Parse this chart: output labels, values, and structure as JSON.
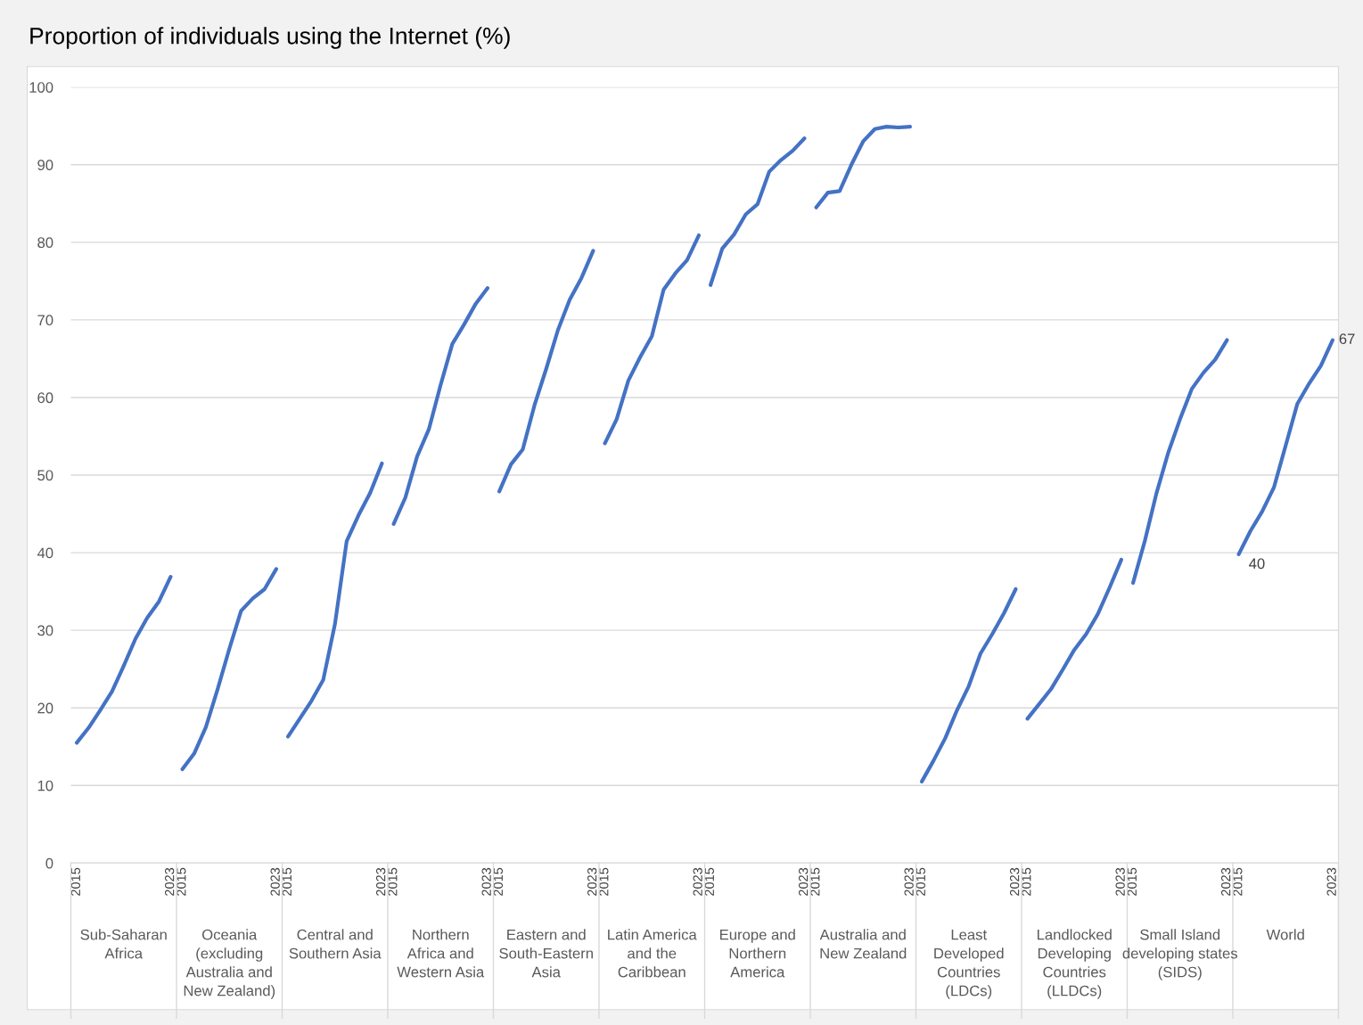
{
  "chart_data": {
    "type": "line",
    "title": "Proportion of individuals using the Internet (%)",
    "categories": [
      "2015",
      null,
      null,
      null,
      null,
      null,
      null,
      null,
      "2023",
      "2015",
      null,
      null,
      null,
      null,
      null,
      null,
      null,
      "2023",
      "2015",
      null,
      null,
      null,
      null,
      null,
      null,
      null,
      "2023",
      "2015",
      null,
      null,
      null,
      null,
      null,
      null,
      null,
      "2023",
      "2015",
      null,
      null,
      null,
      null,
      null,
      null,
      null,
      "2023",
      "2015",
      null,
      null,
      null,
      null,
      null,
      null,
      null,
      "2023",
      "2015",
      null,
      null,
      null,
      null,
      null,
      null,
      null,
      "2023",
      "2015",
      null,
      null,
      null,
      null,
      null,
      null,
      null,
      "2023",
      "2015",
      null,
      null,
      null,
      null,
      null,
      null,
      null,
      "2023",
      "2015",
      null,
      null,
      null,
      null,
      null,
      null,
      null,
      "2023",
      "2015",
      null,
      null,
      null,
      null,
      null,
      null,
      null,
      "2023",
      "2015",
      null,
      null,
      null,
      null,
      null,
      null,
      null,
      "2023"
    ],
    "ylim": [
      0,
      100
    ],
    "yticks": [
      0,
      10,
      20,
      30,
      40,
      50,
      60,
      70,
      80,
      90,
      100
    ],
    "grid": "y",
    "marker": "none",
    "line_style": "solid",
    "annotations": [
      "Sub-Saharan\nAfrica",
      "Oceania\n(excluding\nAustralia and\nNew Zealand)",
      "Central and\nSouthern Asia",
      "Northern\nAfrica and\nWestern Asia",
      "Eastern and\nSouth-Eastern\nAsia",
      "Latin America\nand the\nCaribbean",
      "Europe and\nNorthern\nAmerica",
      "Australia and\nNew Zealand",
      "Least\nDeveloped\nCountries\n(LDCs)",
      "Landlocked\nDeveloping\nCountries\n(LLDCs)",
      "Small Island\ndeveloping states\n(SIDS)",
      "World"
    ],
    "series": [
      {
        "color": "#4472c4",
        "values": [
          15.5,
          17.4,
          19.7,
          22.1,
          25.4,
          28.9,
          31.6,
          33.7,
          36.9,
          null,
          null,
          null,
          null,
          null,
          null,
          null,
          null,
          null,
          null,
          null,
          null,
          null,
          null,
          null,
          null,
          null,
          null,
          null,
          null,
          null,
          null,
          null,
          null,
          null,
          null,
          null,
          null,
          null,
          null,
          null,
          null,
          null,
          null,
          null,
          null,
          null,
          null,
          null,
          null,
          null,
          null,
          null,
          null,
          null,
          null,
          null,
          null,
          null,
          null,
          null,
          null,
          null,
          null,
          null,
          null,
          null,
          null,
          null,
          null,
          null,
          null,
          null,
          null,
          null,
          null,
          null,
          null,
          null,
          null,
          null,
          null,
          null,
          null,
          null,
          null,
          null,
          null,
          null,
          null,
          null,
          null,
          null,
          null,
          null,
          null,
          null,
          null,
          null,
          null,
          null,
          null,
          null,
          null,
          null,
          null,
          null,
          null,
          null
        ]
      },
      {
        "color": "#4472c4",
        "values": [
          null,
          null,
          null,
          null,
          null,
          null,
          null,
          null,
          null,
          12.1,
          14.1,
          17.5,
          22.4,
          27.6,
          32.5,
          34.1,
          35.3,
          37.9,
          null,
          null,
          null,
          null,
          null,
          null,
          null,
          null,
          null,
          null,
          null,
          null,
          null,
          null,
          null,
          null,
          null,
          null,
          null,
          null,
          null,
          null,
          null,
          null,
          null,
          null,
          null,
          null,
          null,
          null,
          null,
          null,
          null,
          null,
          null,
          null,
          null,
          null,
          null,
          null,
          null,
          null,
          null,
          null,
          null,
          null,
          null,
          null,
          null,
          null,
          null,
          null,
          null,
          null,
          null,
          null,
          null,
          null,
          null,
          null,
          null,
          null,
          null,
          null,
          null,
          null,
          null,
          null,
          null,
          null,
          null,
          null,
          null,
          null,
          null,
          null,
          null,
          null,
          null,
          null,
          null,
          null,
          null,
          null,
          null,
          null,
          null,
          null,
          null,
          null
        ]
      },
      {
        "color": "#4472c4",
        "values": [
          null,
          null,
          null,
          null,
          null,
          null,
          null,
          null,
          null,
          null,
          null,
          null,
          null,
          null,
          null,
          null,
          null,
          null,
          16.3,
          18.6,
          20.9,
          23.6,
          30.8,
          41.5,
          44.8,
          47.7,
          51.5,
          null,
          null,
          null,
          null,
          null,
          null,
          null,
          null,
          null,
          null,
          null,
          null,
          null,
          null,
          null,
          null,
          null,
          null,
          null,
          null,
          null,
          null,
          null,
          null,
          null,
          null,
          null,
          null,
          null,
          null,
          null,
          null,
          null,
          null,
          null,
          null,
          null,
          null,
          null,
          null,
          null,
          null,
          null,
          null,
          null,
          null,
          null,
          null,
          null,
          null,
          null,
          null,
          null,
          null,
          null,
          null,
          null,
          null,
          null,
          null,
          null,
          null,
          null,
          null,
          null,
          null,
          null,
          null,
          null,
          null,
          null,
          null,
          null,
          null,
          null,
          null,
          null,
          null,
          null,
          null,
          null
        ]
      },
      {
        "color": "#4472c4",
        "values": [
          null,
          null,
          null,
          null,
          null,
          null,
          null,
          null,
          null,
          null,
          null,
          null,
          null,
          null,
          null,
          null,
          null,
          null,
          null,
          null,
          null,
          null,
          null,
          null,
          null,
          null,
          null,
          43.7,
          47.1,
          52.4,
          55.9,
          61.6,
          66.9,
          69.4,
          72.1,
          74.1,
          null,
          null,
          null,
          null,
          null,
          null,
          null,
          null,
          null,
          null,
          null,
          null,
          null,
          null,
          null,
          null,
          null,
          null,
          null,
          null,
          null,
          null,
          null,
          null,
          null,
          null,
          null,
          null,
          null,
          null,
          null,
          null,
          null,
          null,
          null,
          null,
          null,
          null,
          null,
          null,
          null,
          null,
          null,
          null,
          null,
          null,
          null,
          null,
          null,
          null,
          null,
          null,
          null,
          null,
          null,
          null,
          null,
          null,
          null,
          null,
          null,
          null,
          null,
          null,
          null,
          null,
          null,
          null,
          null,
          null,
          null,
          null
        ]
      },
      {
        "color": "#4472c4",
        "values": [
          null,
          null,
          null,
          null,
          null,
          null,
          null,
          null,
          null,
          null,
          null,
          null,
          null,
          null,
          null,
          null,
          null,
          null,
          null,
          null,
          null,
          null,
          null,
          null,
          null,
          null,
          null,
          null,
          null,
          null,
          null,
          null,
          null,
          null,
          null,
          null,
          47.9,
          51.4,
          53.3,
          59.0,
          63.7,
          68.7,
          72.6,
          75.4,
          78.9,
          null,
          null,
          null,
          null,
          null,
          null,
          null,
          null,
          null,
          null,
          null,
          null,
          null,
          null,
          null,
          null,
          null,
          null,
          null,
          null,
          null,
          null,
          null,
          null,
          null,
          null,
          null,
          null,
          null,
          null,
          null,
          null,
          null,
          null,
          null,
          null,
          null,
          null,
          null,
          null,
          null,
          null,
          null,
          null,
          null,
          null,
          null,
          null,
          null,
          null,
          null,
          null,
          null,
          null,
          null,
          null,
          null,
          null,
          null,
          null,
          null,
          null,
          null
        ]
      },
      {
        "color": "#4472c4",
        "values": [
          null,
          null,
          null,
          null,
          null,
          null,
          null,
          null,
          null,
          null,
          null,
          null,
          null,
          null,
          null,
          null,
          null,
          null,
          null,
          null,
          null,
          null,
          null,
          null,
          null,
          null,
          null,
          null,
          null,
          null,
          null,
          null,
          null,
          null,
          null,
          null,
          null,
          null,
          null,
          null,
          null,
          null,
          null,
          null,
          null,
          54.1,
          57.2,
          62.2,
          65.2,
          67.9,
          73.9,
          76.0,
          77.7,
          80.9,
          null,
          null,
          null,
          null,
          null,
          null,
          null,
          null,
          null,
          null,
          null,
          null,
          null,
          null,
          null,
          null,
          null,
          null,
          null,
          null,
          null,
          null,
          null,
          null,
          null,
          null,
          null,
          null,
          null,
          null,
          null,
          null,
          null,
          null,
          null,
          null,
          null,
          null,
          null,
          null,
          null,
          null,
          null,
          null,
          null,
          null,
          null,
          null,
          null,
          null,
          null,
          null,
          null,
          null
        ]
      },
      {
        "color": "#4472c4",
        "values": [
          null,
          null,
          null,
          null,
          null,
          null,
          null,
          null,
          null,
          null,
          null,
          null,
          null,
          null,
          null,
          null,
          null,
          null,
          null,
          null,
          null,
          null,
          null,
          null,
          null,
          null,
          null,
          null,
          null,
          null,
          null,
          null,
          null,
          null,
          null,
          null,
          null,
          null,
          null,
          null,
          null,
          null,
          null,
          null,
          null,
          null,
          null,
          null,
          null,
          null,
          null,
          null,
          null,
          null,
          74.5,
          79.2,
          81.0,
          83.6,
          84.9,
          89.1,
          90.6,
          91.8,
          93.4,
          null,
          null,
          null,
          null,
          null,
          null,
          null,
          null,
          null,
          null,
          null,
          null,
          null,
          null,
          null,
          null,
          null,
          null,
          null,
          null,
          null,
          null,
          null,
          null,
          null,
          null,
          null,
          null,
          null,
          null,
          null,
          null,
          null,
          null,
          null,
          null,
          null,
          null,
          null,
          null,
          null,
          null,
          null,
          null,
          null
        ]
      },
      {
        "color": "#4472c4",
        "values": [
          null,
          null,
          null,
          null,
          null,
          null,
          null,
          null,
          null,
          null,
          null,
          null,
          null,
          null,
          null,
          null,
          null,
          null,
          null,
          null,
          null,
          null,
          null,
          null,
          null,
          null,
          null,
          null,
          null,
          null,
          null,
          null,
          null,
          null,
          null,
          null,
          null,
          null,
          null,
          null,
          null,
          null,
          null,
          null,
          null,
          null,
          null,
          null,
          null,
          null,
          null,
          null,
          null,
          null,
          null,
          null,
          null,
          null,
          null,
          null,
          null,
          null,
          null,
          84.5,
          86.4,
          86.6,
          90.0,
          93.0,
          94.6,
          94.9,
          94.8,
          94.9,
          null,
          null,
          null,
          null,
          null,
          null,
          null,
          null,
          null,
          null,
          null,
          null,
          null,
          null,
          null,
          null,
          null,
          null,
          null,
          null,
          null,
          null,
          null,
          null,
          null,
          null,
          null,
          null,
          null,
          null,
          null,
          null,
          null,
          null,
          null,
          null
        ]
      },
      {
        "color": "#4472c4",
        "values": [
          null,
          null,
          null,
          null,
          null,
          null,
          null,
          null,
          null,
          null,
          null,
          null,
          null,
          null,
          null,
          null,
          null,
          null,
          null,
          null,
          null,
          null,
          null,
          null,
          null,
          null,
          null,
          null,
          null,
          null,
          null,
          null,
          null,
          null,
          null,
          null,
          null,
          null,
          null,
          null,
          null,
          null,
          null,
          null,
          null,
          null,
          null,
          null,
          null,
          null,
          null,
          null,
          null,
          null,
          null,
          null,
          null,
          null,
          null,
          null,
          null,
          null,
          null,
          null,
          null,
          null,
          null,
          null,
          null,
          null,
          null,
          null,
          10.5,
          13.2,
          16.1,
          19.7,
          22.8,
          27.0,
          29.5,
          32.2,
          35.3,
          null,
          null,
          null,
          null,
          null,
          null,
          null,
          null,
          null,
          null,
          null,
          null,
          null,
          null,
          null,
          null,
          null,
          null,
          null,
          null,
          null,
          null,
          null,
          null,
          null,
          null,
          null
        ]
      },
      {
        "color": "#4472c4",
        "values": [
          null,
          null,
          null,
          null,
          null,
          null,
          null,
          null,
          null,
          null,
          null,
          null,
          null,
          null,
          null,
          null,
          null,
          null,
          null,
          null,
          null,
          null,
          null,
          null,
          null,
          null,
          null,
          null,
          null,
          null,
          null,
          null,
          null,
          null,
          null,
          null,
          null,
          null,
          null,
          null,
          null,
          null,
          null,
          null,
          null,
          null,
          null,
          null,
          null,
          null,
          null,
          null,
          null,
          null,
          null,
          null,
          null,
          null,
          null,
          null,
          null,
          null,
          null,
          null,
          null,
          null,
          null,
          null,
          null,
          null,
          null,
          null,
          null,
          null,
          null,
          null,
          null,
          null,
          null,
          null,
          null,
          18.6,
          20.5,
          22.4,
          24.9,
          27.5,
          29.5,
          32.1,
          35.5,
          39.1,
          null,
          null,
          null,
          null,
          null,
          null,
          null,
          null,
          null,
          null,
          null,
          null,
          null,
          null,
          null,
          null,
          null,
          null
        ]
      },
      {
        "color": "#4472c4",
        "values": [
          null,
          null,
          null,
          null,
          null,
          null,
          null,
          null,
          null,
          null,
          null,
          null,
          null,
          null,
          null,
          null,
          null,
          null,
          null,
          null,
          null,
          null,
          null,
          null,
          null,
          null,
          null,
          null,
          null,
          null,
          null,
          null,
          null,
          null,
          null,
          null,
          null,
          null,
          null,
          null,
          null,
          null,
          null,
          null,
          null,
          null,
          null,
          null,
          null,
          null,
          null,
          null,
          null,
          null,
          null,
          null,
          null,
          null,
          null,
          null,
          null,
          null,
          null,
          null,
          null,
          null,
          null,
          null,
          null,
          null,
          null,
          null,
          null,
          null,
          null,
          null,
          null,
          null,
          null,
          null,
          null,
          null,
          null,
          null,
          null,
          null,
          null,
          null,
          null,
          null,
          36.1,
          41.5,
          47.7,
          52.9,
          57.2,
          61.1,
          63.2,
          64.9,
          67.4,
          null,
          null,
          null,
          null,
          null,
          null,
          null,
          null,
          null
        ]
      },
      {
        "color": "#4472c4",
        "values": [
          null,
          null,
          null,
          null,
          null,
          null,
          null,
          null,
          null,
          null,
          null,
          null,
          null,
          null,
          null,
          null,
          null,
          null,
          null,
          null,
          null,
          null,
          null,
          null,
          null,
          null,
          null,
          null,
          null,
          null,
          null,
          null,
          null,
          null,
          null,
          null,
          null,
          null,
          null,
          null,
          null,
          null,
          null,
          null,
          null,
          null,
          null,
          null,
          null,
          null,
          null,
          null,
          null,
          null,
          null,
          null,
          null,
          null,
          null,
          null,
          null,
          null,
          null,
          null,
          null,
          null,
          null,
          null,
          null,
          null,
          null,
          null,
          null,
          null,
          null,
          null,
          null,
          null,
          null,
          null,
          null,
          null,
          null,
          null,
          null,
          null,
          null,
          null,
          null,
          null,
          null,
          null,
          null,
          null,
          null,
          null,
          null,
          null,
          null,
          39.8,
          42.8,
          45.3,
          48.4,
          53.8,
          59.2,
          61.8,
          64.1,
          67.4
        ],
        "value_labels": [
          null,
          null,
          null,
          null,
          null,
          null,
          null,
          null,
          null,
          null,
          null,
          null,
          null,
          null,
          null,
          null,
          null,
          null,
          null,
          null,
          null,
          null,
          null,
          null,
          null,
          null,
          null,
          null,
          null,
          null,
          null,
          null,
          null,
          null,
          null,
          null,
          null,
          null,
          null,
          null,
          null,
          null,
          null,
          null,
          null,
          null,
          null,
          null,
          null,
          null,
          null,
          null,
          null,
          null,
          null,
          null,
          null,
          null,
          null,
          null,
          null,
          null,
          null,
          null,
          null,
          null,
          null,
          null,
          null,
          null,
          null,
          null,
          null,
          null,
          null,
          null,
          null,
          null,
          null,
          null,
          null,
          null,
          null,
          null,
          null,
          null,
          null,
          null,
          null,
          null,
          null,
          null,
          null,
          null,
          null,
          null,
          null,
          null,
          null,
          "40",
          null,
          null,
          null,
          null,
          null,
          null,
          null,
          "67"
        ]
      }
    ]
  }
}
